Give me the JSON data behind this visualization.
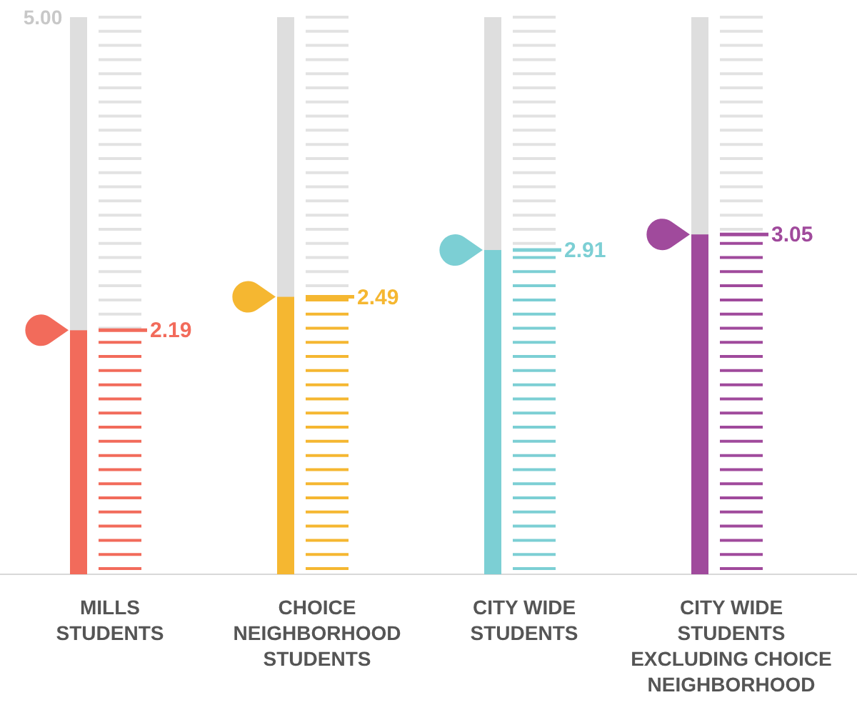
{
  "chart_data": {
    "type": "bar",
    "categories": [
      "MILLS STUDENTS",
      "CHOICE NEIGHBORHOOD STUDENTS",
      "CITY WIDE STUDENTS",
      "CITY WIDE STUDENTS EXCLUDING CHOICE NEIGHBORHOOD"
    ],
    "values": [
      2.19,
      2.49,
      2.91,
      3.05
    ],
    "colors": [
      "#f26b5b",
      "#f5b731",
      "#7ccfd4",
      "#a04a9c"
    ],
    "ylim": [
      0,
      5
    ],
    "annotations": [
      "5.00"
    ],
    "data_labels": true
  }
}
